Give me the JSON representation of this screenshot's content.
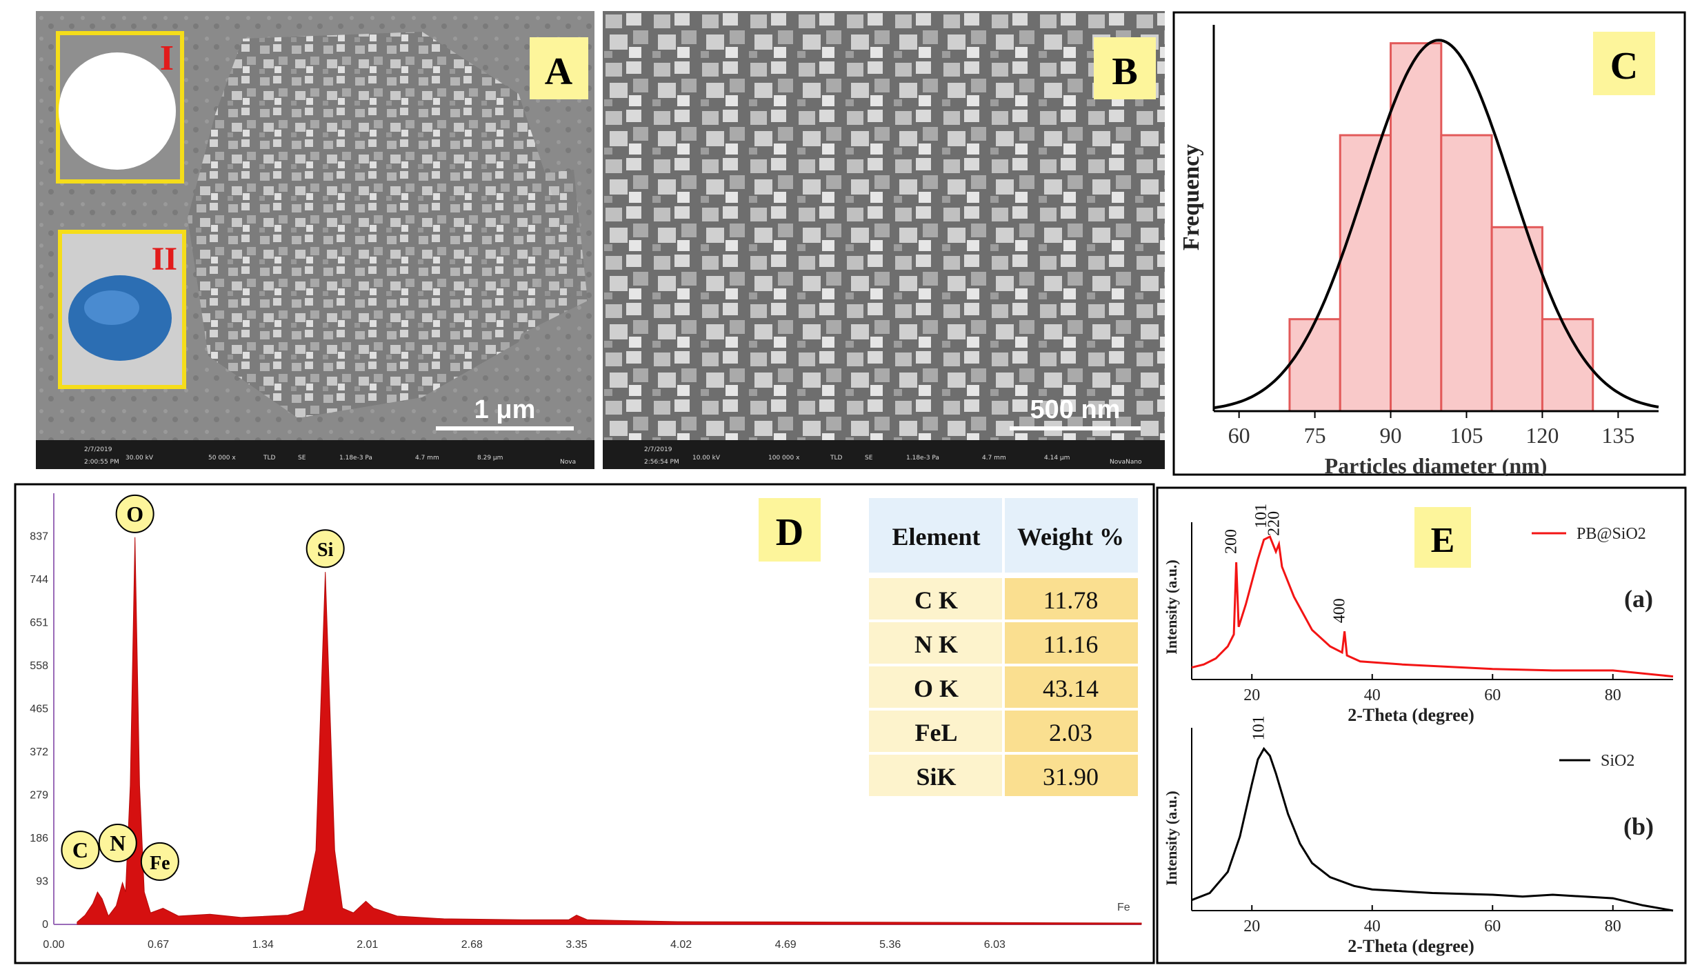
{
  "panels": {
    "A": {
      "label": "A",
      "inset_1": "I",
      "inset_2": "II",
      "scale_bar": "1 μm",
      "databar": {
        "date": "2/7/2019",
        "time": "2:00:55 PM",
        "hv": "30.00 kV",
        "mag": "50 000 x",
        "det": "TLD",
        "mode": "SE",
        "pressure": "1.18e-3 Pa",
        "wd": "4.7 mm",
        "hfw": "8.29 μm",
        "brand": "Nova"
      }
    },
    "B": {
      "label": "B",
      "scale_bar": "500 nm",
      "databar": {
        "date": "2/7/2019",
        "time": "2:56:54 PM",
        "hv": "10.00 kV",
        "mag": "100 000 x",
        "det": "TLD",
        "mode": "SE",
        "pressure": "1.18e-3 Pa",
        "wd": "4.7 mm",
        "hfw": "4.14 μm",
        "brand": "NovaNano"
      }
    },
    "C": {
      "label": "C"
    },
    "D": {
      "label": "D"
    },
    "E": {
      "label": "E"
    }
  },
  "colors": {
    "panel_label_bg": "#fdf59b",
    "inset_border": "#f5dd1a",
    "hist_fill": "#f9c9c9",
    "hist_edge": "#e25a5a",
    "eds_fill": "#d51010",
    "xrd_red": "#f31414",
    "table_header": "#e4f0fa",
    "table_cell_light": "#fdf3cc",
    "table_cell_dark": "#fadf90"
  },
  "chart_data": [
    {
      "id": "C",
      "type": "bar",
      "xlabel": "Particles diameter (nm)",
      "ylabel": "Frequency",
      "xlim": [
        55,
        143
      ],
      "xticks": [
        60,
        75,
        90,
        105,
        120,
        135
      ],
      "bins": [
        {
          "from": 70,
          "to": 80,
          "value": 3
        },
        {
          "from": 80,
          "to": 90,
          "value": 9
        },
        {
          "from": 90,
          "to": 100,
          "value": 12
        },
        {
          "from": 100,
          "to": 110,
          "value": 9
        },
        {
          "from": 110,
          "to": 120,
          "value": 6
        },
        {
          "from": 120,
          "to": 130,
          "value": 3
        }
      ],
      "fit": {
        "type": "gaussian",
        "mean": 99.5,
        "sigma": 14.5,
        "peak": 12.1
      },
      "ylim": [
        0,
        12.6
      ],
      "grid": false
    },
    {
      "id": "D",
      "type": "area",
      "xlim": [
        0,
        6.97
      ],
      "ylim": [
        0,
        930
      ],
      "xticks": [
        "0.00",
        "0.67",
        "1.34",
        "2.01",
        "2.68",
        "3.35",
        "4.02",
        "4.69",
        "5.36",
        "6.03"
      ],
      "yticks": [
        "0",
        "93",
        "186",
        "279",
        "372",
        "465",
        "558",
        "651",
        "744",
        "837"
      ],
      "spectrum": [
        [
          0.15,
          5
        ],
        [
          0.2,
          20
        ],
        [
          0.25,
          45
        ],
        [
          0.28,
          70
        ],
        [
          0.31,
          55
        ],
        [
          0.35,
          18
        ],
        [
          0.4,
          40
        ],
        [
          0.44,
          90
        ],
        [
          0.46,
          70
        ],
        [
          0.49,
          300
        ],
        [
          0.52,
          835
        ],
        [
          0.55,
          300
        ],
        [
          0.58,
          70
        ],
        [
          0.62,
          25
        ],
        [
          0.7,
          35
        ],
        [
          0.8,
          18
        ],
        [
          1.0,
          22
        ],
        [
          1.2,
          15
        ],
        [
          1.5,
          20
        ],
        [
          1.6,
          30
        ],
        [
          1.68,
          160
        ],
        [
          1.74,
          760
        ],
        [
          1.8,
          160
        ],
        [
          1.85,
          35
        ],
        [
          1.92,
          25
        ],
        [
          2.0,
          50
        ],
        [
          2.05,
          35
        ],
        [
          2.2,
          18
        ],
        [
          2.5,
          12
        ],
        [
          3.0,
          10
        ],
        [
          3.3,
          10
        ],
        [
          3.35,
          20
        ],
        [
          3.42,
          10
        ],
        [
          4.0,
          6
        ],
        [
          5.0,
          5
        ],
        [
          6.0,
          4
        ],
        [
          6.97,
          3
        ]
      ],
      "peak_labels": [
        {
          "label": "O",
          "x": 0.52,
          "y": 835
        },
        {
          "label": "Si",
          "x": 1.74,
          "y": 760
        },
        {
          "label": "C",
          "x": 0.17,
          "y": 110
        },
        {
          "label": "N",
          "x": 0.41,
          "y": 125
        },
        {
          "label": "Fe",
          "x": 0.68,
          "y": 85
        }
      ],
      "annotation": "Fe",
      "grid": false
    },
    {
      "id": "D-table",
      "type": "table",
      "columns": [
        "Element",
        "Weight %"
      ],
      "rows": [
        [
          "C K",
          "11.78"
        ],
        [
          "N K",
          "11.16"
        ],
        [
          "O K",
          "43.14"
        ],
        [
          "FeL",
          "2.03"
        ],
        [
          "SiK",
          "31.90"
        ]
      ]
    },
    {
      "id": "E-a",
      "type": "line",
      "xlabel": "2-Theta (degree)",
      "ylabel": "Intensity (a.u.)",
      "xlim": [
        10,
        90
      ],
      "xticks": [
        20,
        40,
        60,
        80
      ],
      "ylim": [
        0,
        1
      ],
      "series": [
        {
          "name": "PB@SiO2",
          "points": [
            [
              10,
              0.08
            ],
            [
              12,
              0.1
            ],
            [
              14,
              0.14
            ],
            [
              16,
              0.22
            ],
            [
              17,
              0.3
            ],
            [
              17.4,
              0.78
            ],
            [
              17.8,
              0.35
            ],
            [
              19,
              0.5
            ],
            [
              21,
              0.8
            ],
            [
              22,
              0.93
            ],
            [
              23,
              0.95
            ],
            [
              24,
              0.85
            ],
            [
              24.5,
              0.9
            ],
            [
              25,
              0.75
            ],
            [
              27,
              0.55
            ],
            [
              30,
              0.33
            ],
            [
              33,
              0.22
            ],
            [
              35,
              0.18
            ],
            [
              35.4,
              0.32
            ],
            [
              35.8,
              0.16
            ],
            [
              38,
              0.12
            ],
            [
              45,
              0.1
            ],
            [
              60,
              0.07
            ],
            [
              70,
              0.06
            ],
            [
              80,
              0.06
            ],
            [
              85,
              0.04
            ],
            [
              90,
              0.02
            ]
          ]
        }
      ],
      "peak_labels": [
        {
          "label": "200",
          "x": 17.4,
          "y": 0.78
        },
        {
          "label": "101",
          "x": 22.4,
          "y": 0.95
        },
        {
          "label": "220",
          "x": 24.5,
          "y": 0.9
        },
        {
          "label": "400",
          "x": 35.4,
          "y": 0.32
        }
      ],
      "tag": "(a)"
    },
    {
      "id": "E-b",
      "type": "line",
      "xlabel": "2-Theta (degree)",
      "ylabel": "Intensity (a.u.)",
      "xlim": [
        10,
        90
      ],
      "xticks": [
        20,
        40,
        60,
        80
      ],
      "ylim": [
        0,
        1
      ],
      "series": [
        {
          "name": "SiO2",
          "points": [
            [
              10,
              0.06
            ],
            [
              13,
              0.1
            ],
            [
              16,
              0.22
            ],
            [
              18,
              0.42
            ],
            [
              20,
              0.72
            ],
            [
              21,
              0.86
            ],
            [
              22,
              0.92
            ],
            [
              23,
              0.88
            ],
            [
              24,
              0.78
            ],
            [
              26,
              0.55
            ],
            [
              28,
              0.38
            ],
            [
              30,
              0.27
            ],
            [
              33,
              0.19
            ],
            [
              37,
              0.14
            ],
            [
              40,
              0.12
            ],
            [
              50,
              0.1
            ],
            [
              60,
              0.09
            ],
            [
              65,
              0.08
            ],
            [
              70,
              0.09
            ],
            [
              80,
              0.07
            ],
            [
              85,
              0.03
            ],
            [
              90,
              0.0
            ]
          ]
        }
      ],
      "peak_labels": [
        {
          "label": "101",
          "x": 22,
          "y": 0.92
        }
      ],
      "tag": "(b)"
    }
  ]
}
